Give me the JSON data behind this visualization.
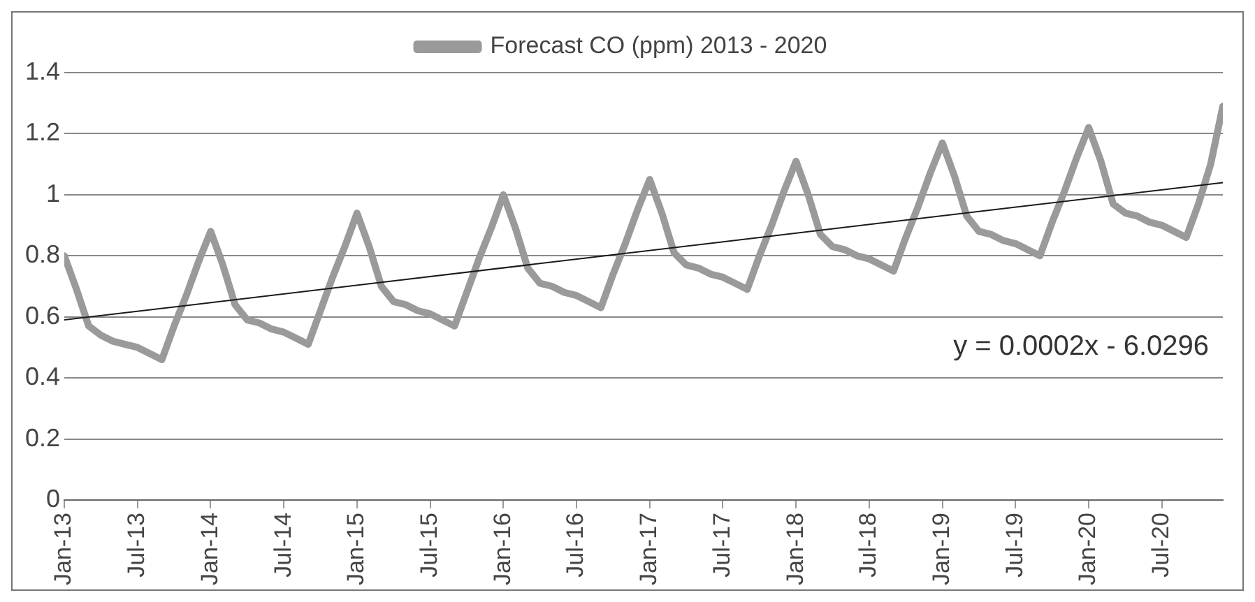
{
  "chart_data": {
    "type": "line",
    "x": [
      "2013-01",
      "2013-02",
      "2013-03",
      "2013-04",
      "2013-05",
      "2013-06",
      "2013-07",
      "2013-08",
      "2013-09",
      "2013-10",
      "2013-11",
      "2013-12",
      "2014-01",
      "2014-02",
      "2014-03",
      "2014-04",
      "2014-05",
      "2014-06",
      "2014-07",
      "2014-08",
      "2014-09",
      "2014-10",
      "2014-11",
      "2014-12",
      "2015-01",
      "2015-02",
      "2015-03",
      "2015-04",
      "2015-05",
      "2015-06",
      "2015-07",
      "2015-08",
      "2015-09",
      "2015-10",
      "2015-11",
      "2015-12",
      "2016-01",
      "2016-02",
      "2016-03",
      "2016-04",
      "2016-05",
      "2016-06",
      "2016-07",
      "2016-08",
      "2016-09",
      "2016-10",
      "2016-11",
      "2016-12",
      "2017-01",
      "2017-02",
      "2017-03",
      "2017-04",
      "2017-05",
      "2017-06",
      "2017-07",
      "2017-08",
      "2017-09",
      "2017-10",
      "2017-11",
      "2017-12",
      "2018-01",
      "2018-02",
      "2018-03",
      "2018-04",
      "2018-05",
      "2018-06",
      "2018-07",
      "2018-08",
      "2018-09",
      "2018-10",
      "2018-11",
      "2018-12",
      "2019-01",
      "2019-02",
      "2019-03",
      "2019-04",
      "2019-05",
      "2019-06",
      "2019-07",
      "2019-08",
      "2019-09",
      "2019-10",
      "2019-11",
      "2019-12",
      "2020-01",
      "2020-02",
      "2020-03",
      "2020-04",
      "2020-05",
      "2020-06",
      "2020-07",
      "2020-08",
      "2020-09",
      "2020-10",
      "2020-11",
      "2020-12"
    ],
    "series": [
      {
        "name": "Forecast CO (ppm) 2013 - 2020",
        "color": "#9a9a9a",
        "values": [
          0.8,
          0.69,
          0.57,
          0.54,
          0.52,
          0.51,
          0.5,
          0.48,
          0.46,
          0.57,
          0.67,
          0.78,
          0.88,
          0.77,
          0.64,
          0.59,
          0.58,
          0.56,
          0.55,
          0.53,
          0.51,
          0.62,
          0.73,
          0.83,
          0.94,
          0.83,
          0.7,
          0.65,
          0.64,
          0.62,
          0.61,
          0.59,
          0.57,
          0.68,
          0.79,
          0.89,
          1.0,
          0.89,
          0.76,
          0.71,
          0.7,
          0.68,
          0.67,
          0.65,
          0.63,
          0.74,
          0.84,
          0.95,
          1.05,
          0.94,
          0.81,
          0.77,
          0.76,
          0.74,
          0.73,
          0.71,
          0.69,
          0.8,
          0.9,
          1.01,
          1.11,
          1.0,
          0.87,
          0.83,
          0.82,
          0.8,
          0.79,
          0.77,
          0.75,
          0.86,
          0.96,
          1.07,
          1.17,
          1.06,
          0.93,
          0.88,
          0.87,
          0.85,
          0.84,
          0.82,
          0.8,
          0.91,
          1.01,
          1.12,
          1.22,
          1.11,
          0.97,
          0.94,
          0.93,
          0.91,
          0.9,
          0.88,
          0.86,
          0.97,
          1.1,
          1.29
        ]
      },
      {
        "type": "line",
        "color": "#1a1a1a",
        "x": [
          "2013-01",
          "2020-12"
        ],
        "values": [
          0.59,
          1.04
        ]
      }
    ],
    "xlim": [
      "2013-01",
      "2020-12"
    ],
    "xticks": [
      {
        "value": "2013-01",
        "label": "Jan-13"
      },
      {
        "value": "2013-07",
        "label": "Jul-13"
      },
      {
        "value": "2014-01",
        "label": "Jan-14"
      },
      {
        "value": "2014-07",
        "label": "Jul-14"
      },
      {
        "value": "2015-01",
        "label": "Jan-15"
      },
      {
        "value": "2015-07",
        "label": "Jul-15"
      },
      {
        "value": "2016-01",
        "label": "Jan-16"
      },
      {
        "value": "2016-07",
        "label": "Jul-16"
      },
      {
        "value": "2017-01",
        "label": "Jan-17"
      },
      {
        "value": "2017-07",
        "label": "Jul-17"
      },
      {
        "value": "2018-01",
        "label": "Jan-18"
      },
      {
        "value": "2018-07",
        "label": "Jul-18"
      },
      {
        "value": "2019-01",
        "label": "Jan-19"
      },
      {
        "value": "2019-07",
        "label": "Jul-19"
      },
      {
        "value": "2020-01",
        "label": "Jan-20"
      },
      {
        "value": "2020-07",
        "label": "Jul-20"
      }
    ],
    "ylim": [
      0,
      1.4
    ],
    "yticks": [
      0,
      {
        "value": 0.2,
        "label": "0.2"
      },
      {
        "value": 0.4,
        "label": "0.4"
      },
      {
        "value": 0.6,
        "label": "0.6"
      },
      {
        "value": 0.8,
        "label": "0.8"
      },
      1,
      {
        "value": 1.2,
        "label": "1.2"
      },
      {
        "value": 1.4,
        "label": "1.4"
      }
    ],
    "grid": "y",
    "legend": "top",
    "annotations": [
      "y = 0.0002x - 6.0296"
    ]
  }
}
